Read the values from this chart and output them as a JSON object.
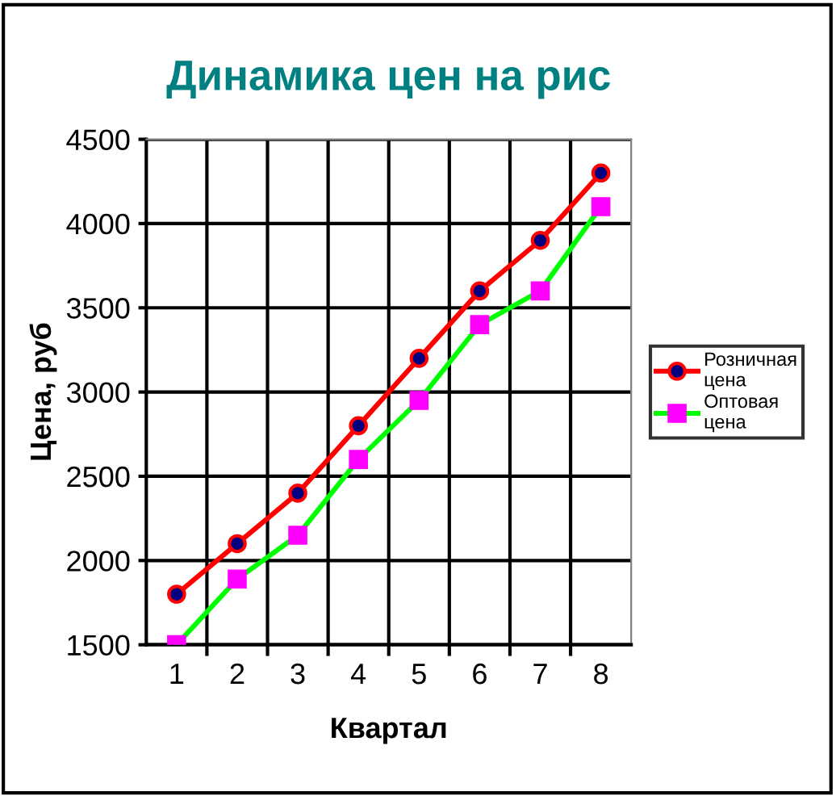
{
  "chart_data": {
    "type": "line",
    "title": "Динамика цен на рис",
    "xlabel": "Квартал",
    "ylabel": "Цена, руб",
    "categories": [
      "1",
      "2",
      "3",
      "4",
      "5",
      "6",
      "7",
      "8"
    ],
    "series": [
      {
        "name": "Розничная цена",
        "color": "#ff0000",
        "marker": "circle",
        "values": [
          1800,
          2100,
          2400,
          2800,
          3200,
          3600,
          3900,
          4300
        ]
      },
      {
        "name": "Оптовая цена",
        "color": "#00ff00",
        "marker": "square",
        "values": [
          1500,
          1890,
          2150,
          2600,
          2950,
          3400,
          3600,
          4100
        ]
      }
    ],
    "ylim": [
      1500,
      4500
    ],
    "yticks": [
      1500,
      2000,
      2500,
      3000,
      3500,
      4000,
      4500
    ],
    "grid": true,
    "legend": "right"
  }
}
